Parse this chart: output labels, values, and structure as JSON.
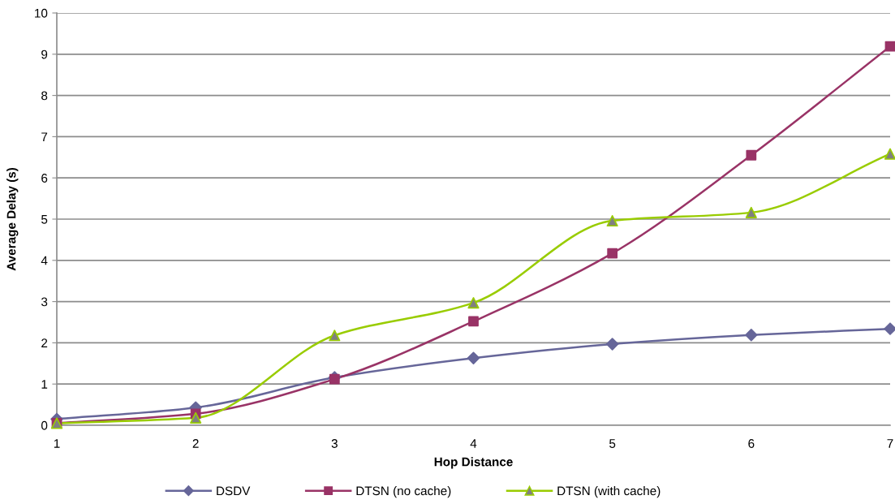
{
  "chart_data": {
    "type": "line",
    "xlabel": "Hop Distance",
    "ylabel": "Average Delay (s)",
    "x": [
      1,
      2,
      3,
      4,
      5,
      6,
      7
    ],
    "series": [
      {
        "name": "DSDV",
        "color": "#666699",
        "marker": "diamond",
        "values": [
          0.15,
          0.43,
          1.16,
          1.63,
          1.97,
          2.19,
          2.34
        ]
      },
      {
        "name": "DTSN (no cache)",
        "color": "#993366",
        "marker": "square",
        "values": [
          0.05,
          0.28,
          1.12,
          2.52,
          4.17,
          6.55,
          9.19
        ]
      },
      {
        "name": "DTSN (with cache)",
        "color": "#99cc00",
        "colors": [
          "#808080",
          "#808080",
          "#808080",
          "#808080",
          "#808080",
          "#808080",
          "#808080"
        ],
        "marker": "triangle",
        "values": [
          0.05,
          0.18,
          2.18,
          2.97,
          4.96,
          5.16,
          6.58
        ]
      }
    ],
    "xlim": [
      1,
      7
    ],
    "xticks": [
      1,
      2,
      3,
      4,
      5,
      6,
      7
    ],
    "ylim": [
      0,
      10
    ],
    "yticks": [
      0,
      1,
      2,
      3,
      4,
      5,
      6,
      7,
      8,
      9,
      10
    ],
    "grid": "y",
    "legend": "bottom",
    "line_style": "solid"
  }
}
